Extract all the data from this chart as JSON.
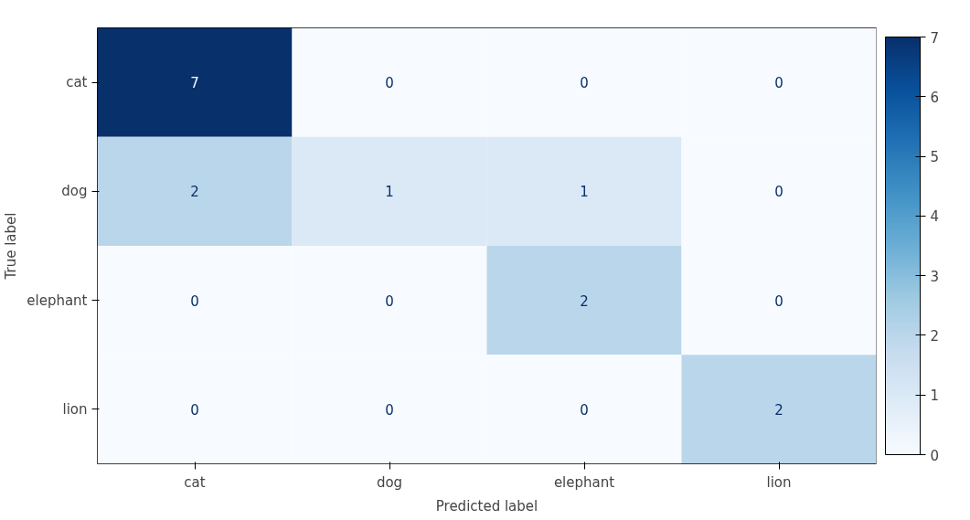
{
  "chart_data": {
    "type": "heatmap",
    "xlabel": "Predicted label",
    "ylabel": "True label",
    "categories": [
      "cat",
      "dog",
      "elephant",
      "lion"
    ],
    "y_categories": [
      "cat",
      "dog",
      "elephant",
      "lion"
    ],
    "cells": [
      [
        7,
        0,
        0,
        0
      ],
      [
        2,
        1,
        1,
        0
      ],
      [
        0,
        0,
        2,
        0
      ],
      [
        0,
        0,
        0,
        2
      ]
    ],
    "clim": [
      0,
      7
    ],
    "cticks": [
      0,
      1,
      2,
      3,
      4,
      5,
      6,
      7
    ],
    "data_labels": true
  }
}
